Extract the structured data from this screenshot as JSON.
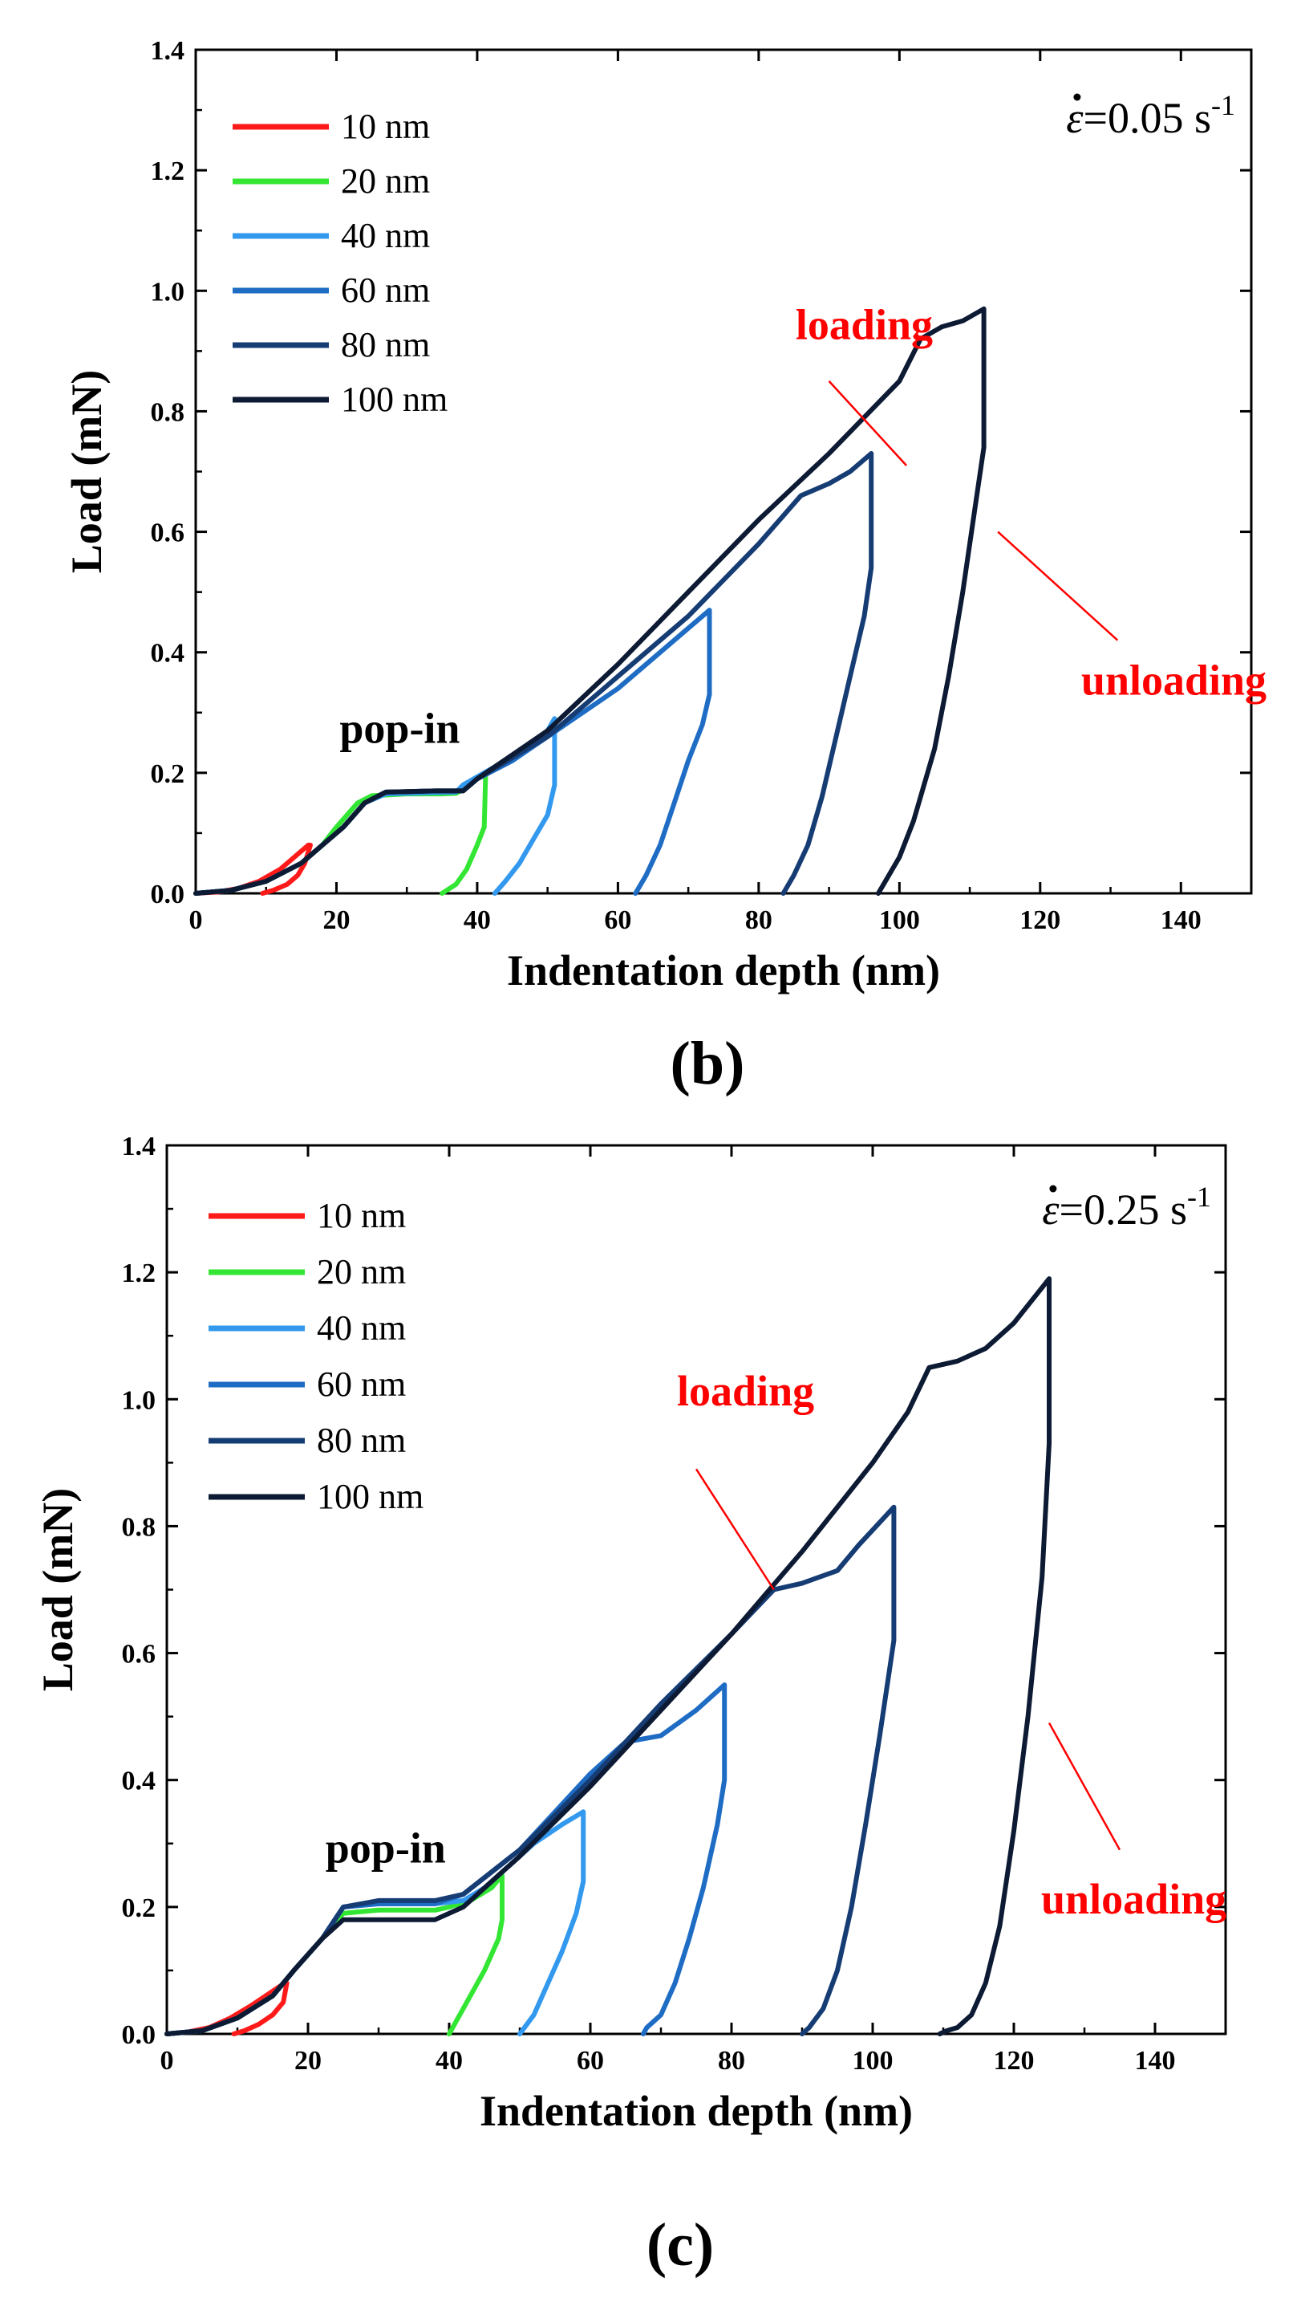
{
  "chart_data": [
    {
      "type": "line",
      "panel_label": "(b)",
      "xlabel": "Indentation depth (nm)",
      "ylabel": "Load (mN)",
      "xlim": [
        0,
        150
      ],
      "ylim": [
        0,
        1.4
      ],
      "xticks": [
        0,
        20,
        40,
        60,
        80,
        100,
        120,
        140
      ],
      "yticks": [
        0.0,
        0.2,
        0.4,
        0.6,
        0.8,
        1.0,
        1.2,
        1.4
      ],
      "grid": false,
      "legend_position": "top-left",
      "rate_label": {
        "prefix": "=0.05 s",
        "exponent": "-1"
      },
      "annotations": [
        {
          "text": "loading",
          "color": "#ff0000",
          "label_x": 95,
          "label_y": 0.92,
          "line": [
            [
              90,
              0.85
            ],
            [
              101,
              0.71
            ]
          ]
        },
        {
          "text": "unloading",
          "color": "#ff0000",
          "label_x": 139,
          "label_y": 0.33,
          "line": [
            [
              131,
              0.42
            ],
            [
              114,
              0.6
            ]
          ]
        },
        {
          "text": "pop-in",
          "color": "#000000",
          "label_x": 29,
          "label_y": 0.25
        }
      ],
      "series": [
        {
          "name": "10 nm",
          "color": "#ff1a1a",
          "x": [
            0,
            3,
            6,
            9,
            12,
            14,
            16,
            16.3,
            15.5,
            14.5,
            13,
            11,
            9.5
          ],
          "y": [
            0,
            0.002,
            0.008,
            0.02,
            0.04,
            0.06,
            0.08,
            0.08,
            0.05,
            0.03,
            0.015,
            0.005,
            0
          ]
        },
        {
          "name": "20 nm",
          "color": "#33e633",
          "x": [
            0,
            5,
            10,
            15,
            18,
            20,
            23,
            25,
            30,
            35,
            37,
            39,
            40,
            41,
            41.2,
            41,
            40,
            38.5,
            37,
            35
          ],
          "y": [
            0,
            0.005,
            0.02,
            0.05,
            0.08,
            0.11,
            0.15,
            0.162,
            0.165,
            0.165,
            0.166,
            0.18,
            0.19,
            0.2,
            0.2,
            0.11,
            0.08,
            0.04,
            0.015,
            0
          ]
        },
        {
          "name": "40 nm",
          "color": "#3399ee",
          "x": [
            0,
            5,
            10,
            15,
            18,
            21,
            24,
            27,
            33,
            37,
            38,
            41,
            44,
            47,
            50,
            51,
            51,
            50,
            48,
            46,
            44,
            42.5
          ],
          "y": [
            0,
            0.005,
            0.02,
            0.05,
            0.08,
            0.11,
            0.15,
            0.165,
            0.167,
            0.168,
            0.18,
            0.2,
            0.22,
            0.245,
            0.27,
            0.29,
            0.18,
            0.13,
            0.09,
            0.05,
            0.02,
            0
          ]
        },
        {
          "name": "60 nm",
          "color": "#1e6cc4",
          "x": [
            0,
            5,
            10,
            15,
            18,
            21,
            24,
            27,
            34,
            38,
            40,
            45,
            50,
            55,
            60,
            65,
            70,
            73,
            73,
            72,
            70,
            68,
            66,
            64,
            62.5
          ],
          "y": [
            0,
            0.005,
            0.02,
            0.05,
            0.08,
            0.11,
            0.15,
            0.168,
            0.17,
            0.17,
            0.19,
            0.22,
            0.26,
            0.3,
            0.34,
            0.39,
            0.44,
            0.47,
            0.33,
            0.28,
            0.22,
            0.15,
            0.08,
            0.03,
            0
          ]
        },
        {
          "name": "80 nm",
          "color": "#163c74",
          "x": [
            0,
            5,
            10,
            15,
            18,
            21,
            24,
            27,
            34,
            38,
            40,
            50,
            60,
            70,
            80,
            86,
            90,
            93,
            96,
            96,
            95,
            93,
            91,
            89,
            87,
            85,
            83.5
          ],
          "y": [
            0,
            0.005,
            0.02,
            0.05,
            0.08,
            0.11,
            0.15,
            0.168,
            0.17,
            0.17,
            0.19,
            0.26,
            0.36,
            0.46,
            0.58,
            0.66,
            0.68,
            0.7,
            0.73,
            0.54,
            0.46,
            0.36,
            0.26,
            0.16,
            0.08,
            0.03,
            0
          ]
        },
        {
          "name": "100 nm",
          "color": "#0d1a33",
          "x": [
            0,
            5,
            10,
            15,
            18,
            21,
            24,
            27,
            34,
            38,
            40,
            50,
            60,
            70,
            80,
            90,
            100,
            103,
            106,
            109,
            112,
            112,
            111,
            109,
            107,
            105,
            102,
            100,
            98,
            97
          ],
          "y": [
            0,
            0.005,
            0.02,
            0.05,
            0.08,
            0.11,
            0.15,
            0.168,
            0.17,
            0.17,
            0.19,
            0.27,
            0.38,
            0.5,
            0.62,
            0.73,
            0.85,
            0.92,
            0.94,
            0.95,
            0.97,
            0.74,
            0.66,
            0.5,
            0.36,
            0.24,
            0.12,
            0.06,
            0.02,
            0
          ]
        }
      ]
    },
    {
      "type": "line",
      "panel_label": "(c)",
      "xlabel": "Indentation depth (nm)",
      "ylabel": "Load (mN)",
      "xlim": [
        0,
        150
      ],
      "ylim": [
        0,
        1.4
      ],
      "xticks": [
        0,
        20,
        40,
        60,
        80,
        100,
        120,
        140
      ],
      "yticks": [
        0.0,
        0.2,
        0.4,
        0.6,
        0.8,
        1.0,
        1.2,
        1.4
      ],
      "grid": false,
      "legend_position": "top-left",
      "rate_label": {
        "prefix": "=0.25 s",
        "exponent": "-1"
      },
      "annotations": [
        {
          "text": "loading",
          "color": "#ff0000",
          "label_x": 82,
          "label_y": 0.99,
          "line": [
            [
              75,
              0.89
            ],
            [
              86,
              0.7
            ]
          ]
        },
        {
          "text": "unloading",
          "color": "#ff0000",
          "label_x": 137,
          "label_y": 0.19,
          "line": [
            [
              135,
              0.29
            ],
            [
              125,
              0.49
            ]
          ]
        },
        {
          "text": "pop-in",
          "color": "#000000",
          "label_x": 31,
          "label_y": 0.27
        }
      ],
      "series": [
        {
          "name": "10 nm",
          "color": "#ff1a1a",
          "x": [
            0,
            3,
            6,
            9,
            12,
            14,
            16,
            17,
            16.5,
            15,
            13,
            11,
            9.5
          ],
          "y": [
            0,
            0.003,
            0.01,
            0.025,
            0.045,
            0.06,
            0.075,
            0.08,
            0.05,
            0.03,
            0.015,
            0.005,
            0
          ]
        },
        {
          "name": "20 nm",
          "color": "#33e633",
          "x": [
            0,
            5,
            10,
            15,
            18,
            22,
            25,
            30,
            38,
            40,
            43,
            46,
            47.5,
            47.5,
            47,
            45,
            43,
            41,
            40
          ],
          "y": [
            0,
            0.005,
            0.025,
            0.06,
            0.1,
            0.15,
            0.19,
            0.195,
            0.195,
            0.2,
            0.21,
            0.23,
            0.25,
            0.18,
            0.15,
            0.1,
            0.06,
            0.02,
            0
          ]
        },
        {
          "name": "40 nm",
          "color": "#3399ee",
          "x": [
            0,
            5,
            10,
            15,
            18,
            22,
            25,
            30,
            38,
            42,
            45,
            48,
            52,
            56,
            59,
            59,
            58,
            56,
            54,
            52,
            50
          ],
          "y": [
            0,
            0.005,
            0.025,
            0.06,
            0.1,
            0.15,
            0.2,
            0.205,
            0.205,
            0.21,
            0.23,
            0.26,
            0.3,
            0.33,
            0.35,
            0.24,
            0.19,
            0.13,
            0.08,
            0.03,
            0
          ]
        },
        {
          "name": "60 nm",
          "color": "#1e6cc4",
          "x": [
            0,
            5,
            10,
            15,
            18,
            22,
            25,
            30,
            38,
            42,
            50,
            55,
            60,
            65,
            70,
            75,
            79,
            79,
            78,
            76,
            74,
            72,
            70,
            68,
            67.5
          ],
          "y": [
            0,
            0.005,
            0.025,
            0.06,
            0.1,
            0.15,
            0.2,
            0.205,
            0.205,
            0.22,
            0.29,
            0.35,
            0.41,
            0.46,
            0.47,
            0.51,
            0.55,
            0.4,
            0.33,
            0.23,
            0.15,
            0.08,
            0.03,
            0.01,
            0
          ]
        },
        {
          "name": "80 nm",
          "color": "#163c74",
          "x": [
            0,
            5,
            10,
            15,
            18,
            22,
            25,
            30,
            38,
            42,
            50,
            60,
            70,
            80,
            86,
            90,
            95,
            98,
            103,
            103,
            101,
            99,
            97,
            95,
            93,
            91,
            90
          ],
          "y": [
            0,
            0.005,
            0.025,
            0.06,
            0.1,
            0.15,
            0.2,
            0.21,
            0.21,
            0.22,
            0.29,
            0.4,
            0.52,
            0.63,
            0.7,
            0.71,
            0.73,
            0.77,
            0.83,
            0.62,
            0.47,
            0.33,
            0.2,
            0.1,
            0.04,
            0.01,
            0
          ]
        },
        {
          "name": "100 nm",
          "color": "#0d1a33",
          "x": [
            0,
            5,
            10,
            15,
            18,
            22,
            25,
            30,
            38,
            42,
            50,
            60,
            70,
            80,
            90,
            100,
            105,
            108,
            112,
            116,
            120,
            125,
            125,
            124,
            122,
            120,
            118,
            116,
            114,
            112,
            110.5,
            109.5
          ],
          "y": [
            0,
            0.005,
            0.025,
            0.06,
            0.1,
            0.15,
            0.18,
            0.18,
            0.18,
            0.2,
            0.28,
            0.39,
            0.51,
            0.63,
            0.76,
            0.9,
            0.98,
            1.05,
            1.06,
            1.08,
            1.12,
            1.19,
            0.93,
            0.72,
            0.5,
            0.32,
            0.17,
            0.08,
            0.03,
            0.01,
            0.005,
            0
          ]
        }
      ]
    }
  ]
}
